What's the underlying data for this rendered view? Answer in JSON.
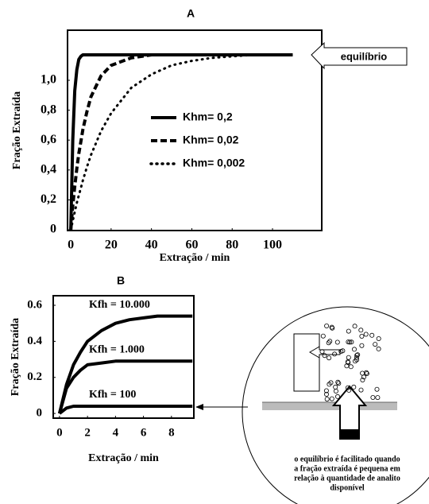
{
  "chart_data": [
    {
      "type": "line",
      "title": "A",
      "x_label": "Extração / min",
      "y_label": "Fração Extraída",
      "xlim": [
        -1.6,
        124.4
      ],
      "ylim": [
        -0.005,
        1.335
      ],
      "xticks": [
        0,
        20,
        40,
        60,
        80,
        100
      ],
      "yticks": [
        0,
        {
          "value": 0.2,
          "label": "0,2"
        },
        {
          "value": 0.4,
          "label": "0,4"
        },
        {
          "value": 0.6,
          "label": "0,6"
        },
        {
          "value": 0.8,
          "label": "0,8"
        },
        {
          "value": 1.0,
          "label": "1,0"
        }
      ],
      "grid": false,
      "legend": "center right",
      "annotation": "equilíbrio",
      "x": [
        0,
        1,
        2,
        3,
        4,
        5,
        6,
        8,
        10,
        15,
        20,
        30,
        40,
        50,
        60,
        70,
        80,
        90,
        100,
        110
      ],
      "series": [
        {
          "name": "Khm= 0,2",
          "color": "#000000",
          "style": "solid",
          "values": [
            0,
            0.6,
            0.93,
            1.07,
            1.14,
            1.16,
            1.17,
            1.17,
            1.17,
            1.17,
            1.17,
            1.17,
            1.17,
            1.17,
            1.17,
            1.17,
            1.17,
            1.17,
            1.17,
            1.17
          ]
        },
        {
          "name": "Khm= 0,02",
          "color": "#000000",
          "style": "dashed",
          "values": [
            0,
            0.16,
            0.29,
            0.41,
            0.51,
            0.59,
            0.67,
            0.79,
            0.89,
            1.03,
            1.1,
            1.15,
            1.17,
            1.17,
            1.17,
            1.17,
            1.17,
            1.17,
            1.17,
            1.17
          ]
        },
        {
          "name": "Khm= 0,002",
          "color": "#000000",
          "style": "dotted",
          "values": [
            0,
            0.06,
            0.12,
            0.18,
            0.23,
            0.28,
            0.33,
            0.42,
            0.5,
            0.66,
            0.78,
            0.95,
            1.04,
            1.1,
            1.13,
            1.15,
            1.16,
            1.17,
            1.17,
            1.17
          ]
        }
      ]
    },
    {
      "type": "line",
      "title": "B",
      "x_label": "Extração / min",
      "y_label": "Fração Extraída",
      "xlim": [
        -0.45,
        9.6
      ],
      "ylim": [
        -0.026,
        0.653
      ],
      "xticks": [
        0,
        2,
        4,
        6,
        8
      ],
      "yticks": [
        0,
        0.2,
        0.4,
        0.6
      ],
      "grid": false,
      "x": [
        0,
        0.5,
        1,
        1.5,
        2,
        3,
        4,
        5,
        6,
        7,
        8,
        9.5
      ],
      "series": [
        {
          "name": "Kfh = 10.000",
          "color": "#000000",
          "style": "solid",
          "values": [
            0,
            0.16,
            0.27,
            0.34,
            0.4,
            0.46,
            0.5,
            0.52,
            0.53,
            0.54,
            0.54,
            0.54
          ]
        },
        {
          "name": "Kfh = 1.000",
          "color": "#000000",
          "style": "solid",
          "values": [
            0,
            0.14,
            0.2,
            0.24,
            0.27,
            0.28,
            0.29,
            0.29,
            0.29,
            0.29,
            0.29,
            0.29
          ]
        },
        {
          "name": "Kfh = 100",
          "color": "#000000",
          "style": "solid",
          "values": [
            0,
            0.03,
            0.04,
            0.04,
            0.04,
            0.04,
            0.04,
            0.04,
            0.04,
            0.04,
            0.04,
            0.04
          ]
        }
      ]
    }
  ],
  "diagram": {
    "caption": [
      "o equilíbrio é facilitado quando",
      "a fração extraída é pequena em",
      "relação à quantidade de analito",
      "disponível"
    ]
  }
}
